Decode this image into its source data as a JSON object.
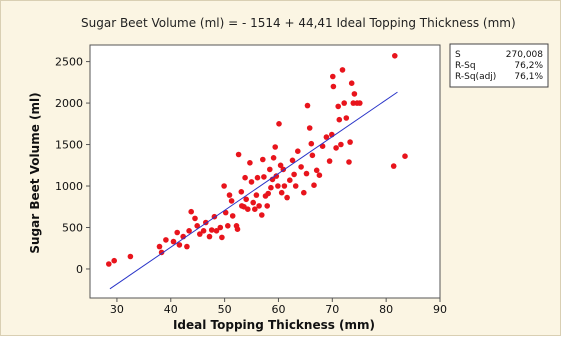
{
  "chart_data": {
    "type": "scatter",
    "title": "Sugar Beet Volume (ml) =  - 1514 + 44,41 Ideal Topping Thickness (mm)",
    "xlabel": "Ideal Topping Thickness (mm)",
    "ylabel": "Sugar Beet Volume (ml)",
    "xlim": [
      25,
      90
    ],
    "ylim": [
      -350,
      2700
    ],
    "xticks": [
      30,
      40,
      50,
      60,
      70,
      80,
      90
    ],
    "yticks": [
      0,
      500,
      1000,
      1500,
      2000,
      2500
    ],
    "fit_line": {
      "intercept": -1514,
      "slope": 44.41,
      "x_range": [
        28.7,
        82.1
      ]
    },
    "stats": [
      {
        "label": "S",
        "value": "270,008"
      },
      {
        "label": "R-Sq",
        "value": "76,2%"
      },
      {
        "label": "R-Sq(adj)",
        "value": "76,1%"
      }
    ],
    "colors": {
      "points": "#e8141c",
      "line": "#2a35c8",
      "background": "#fbf5e3",
      "plot_area": "#ffffff"
    },
    "points": [
      [
        28.5,
        60
      ],
      [
        29.5,
        100
      ],
      [
        32.5,
        150
      ],
      [
        37.9,
        270
      ],
      [
        38.3,
        200
      ],
      [
        39.1,
        350
      ],
      [
        40.5,
        330
      ],
      [
        41.2,
        440
      ],
      [
        41.6,
        290
      ],
      [
        42.3,
        390
      ],
      [
        43,
        270
      ],
      [
        43.4,
        460
      ],
      [
        43.8,
        690
      ],
      [
        44.5,
        610
      ],
      [
        44.9,
        520
      ],
      [
        45.4,
        420
      ],
      [
        46.1,
        460
      ],
      [
        46.5,
        560
      ],
      [
        47.2,
        390
      ],
      [
        47.6,
        470
      ],
      [
        48.1,
        630
      ],
      [
        48.5,
        460
      ],
      [
        49.2,
        500
      ],
      [
        49.5,
        380
      ],
      [
        49.9,
        1000
      ],
      [
        50.2,
        680
      ],
      [
        50.6,
        520
      ],
      [
        50.9,
        890
      ],
      [
        51.3,
        820
      ],
      [
        51.5,
        640
      ],
      [
        52.2,
        520
      ],
      [
        52.4,
        480
      ],
      [
        52.6,
        1380
      ],
      [
        53.1,
        930
      ],
      [
        53.2,
        760
      ],
      [
        53.6,
        750
      ],
      [
        53.8,
        1100
      ],
      [
        54,
        840
      ],
      [
        54.3,
        720
      ],
      [
        54.7,
        1280
      ],
      [
        55,
        1050
      ],
      [
        55.3,
        800
      ],
      [
        55.6,
        720
      ],
      [
        55.9,
        890
      ],
      [
        56.1,
        1100
      ],
      [
        56.4,
        760
      ],
      [
        56.9,
        650
      ],
      [
        57.1,
        1320
      ],
      [
        57.3,
        1110
      ],
      [
        57.6,
        880
      ],
      [
        57.9,
        760
      ],
      [
        58.1,
        910
      ],
      [
        58.4,
        1200
      ],
      [
        58.6,
        980
      ],
      [
        58.9,
        1080
      ],
      [
        59.1,
        1340
      ],
      [
        59.4,
        1470
      ],
      [
        59.6,
        1120
      ],
      [
        59.9,
        1000
      ],
      [
        60.1,
        1750
      ],
      [
        60.4,
        1250
      ],
      [
        60.6,
        920
      ],
      [
        60.9,
        1200
      ],
      [
        61.1,
        1000
      ],
      [
        61.6,
        860
      ],
      [
        62.1,
        1070
      ],
      [
        62.6,
        1310
      ],
      [
        62.9,
        1140
      ],
      [
        63.2,
        1000
      ],
      [
        63.6,
        1420
      ],
      [
        64.2,
        1230
      ],
      [
        64.7,
        920
      ],
      [
        65.2,
        1150
      ],
      [
        65.4,
        1970
      ],
      [
        65.8,
        1700
      ],
      [
        66.1,
        1510
      ],
      [
        66.3,
        1370
      ],
      [
        66.6,
        1010
      ],
      [
        67.1,
        1190
      ],
      [
        67.6,
        1130
      ],
      [
        68.2,
        1480
      ],
      [
        68.9,
        1590
      ],
      [
        69.5,
        1300
      ],
      [
        69.9,
        1620
      ],
      [
        70.1,
        2320
      ],
      [
        70.2,
        2200
      ],
      [
        70.7,
        1460
      ],
      [
        71.1,
        1960
      ],
      [
        71.3,
        1800
      ],
      [
        71.6,
        1500
      ],
      [
        71.9,
        2400
      ],
      [
        72.2,
        2000
      ],
      [
        72.6,
        1820
      ],
      [
        73.1,
        1290
      ],
      [
        73.3,
        1530
      ],
      [
        73.6,
        2240
      ],
      [
        73.9,
        2000
      ],
      [
        74.1,
        2110
      ],
      [
        74.6,
        2000
      ],
      [
        75.1,
        2000
      ],
      [
        81.4,
        1240
      ],
      [
        81.6,
        2570
      ],
      [
        83.5,
        1360
      ]
    ]
  }
}
